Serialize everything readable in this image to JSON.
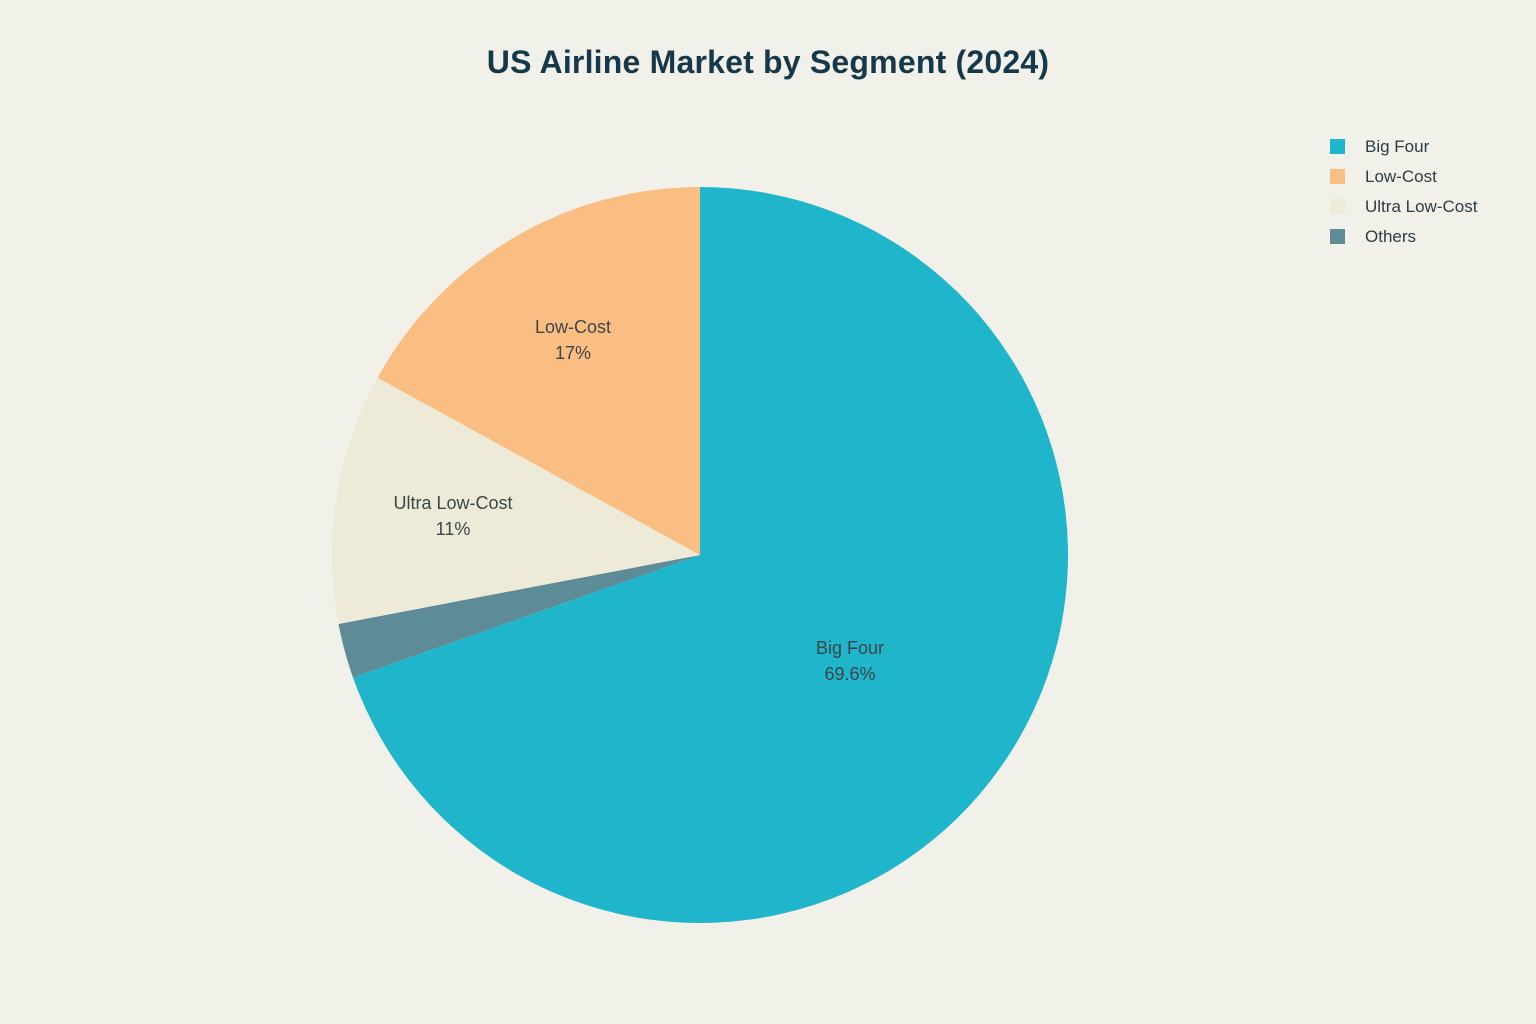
{
  "page": {
    "background_color": "#F1F1EA",
    "title_color": "#15384A",
    "label_text_color": "#3E4448",
    "legend_text_color": "#2C3D46"
  },
  "chart_data": {
    "type": "pie",
    "title": "US Airline Market by Segment (2024)",
    "direction": "clockwise",
    "start_angle_deg": 0,
    "total": 100,
    "slices": [
      {
        "label": "Big Four",
        "value": 69.6,
        "percent_label": "69.6%",
        "color": "#1FB5CB",
        "label_visible": true
      },
      {
        "label": "Others",
        "value": 2.4,
        "percent_label": "",
        "color": "#5D8B98",
        "label_visible": false
      },
      {
        "label": "Ultra Low-Cost",
        "value": 11,
        "percent_label": "11%",
        "color": "#EDEBD8",
        "label_visible": true
      },
      {
        "label": "Low-Cost",
        "value": 17,
        "percent_label": "17%",
        "color": "#FBBE82",
        "label_visible": true
      }
    ],
    "legend": {
      "position": "top-right",
      "entries": [
        "Big Four",
        "Low-Cost",
        "Ultra Low-Cost",
        "Others"
      ]
    }
  }
}
